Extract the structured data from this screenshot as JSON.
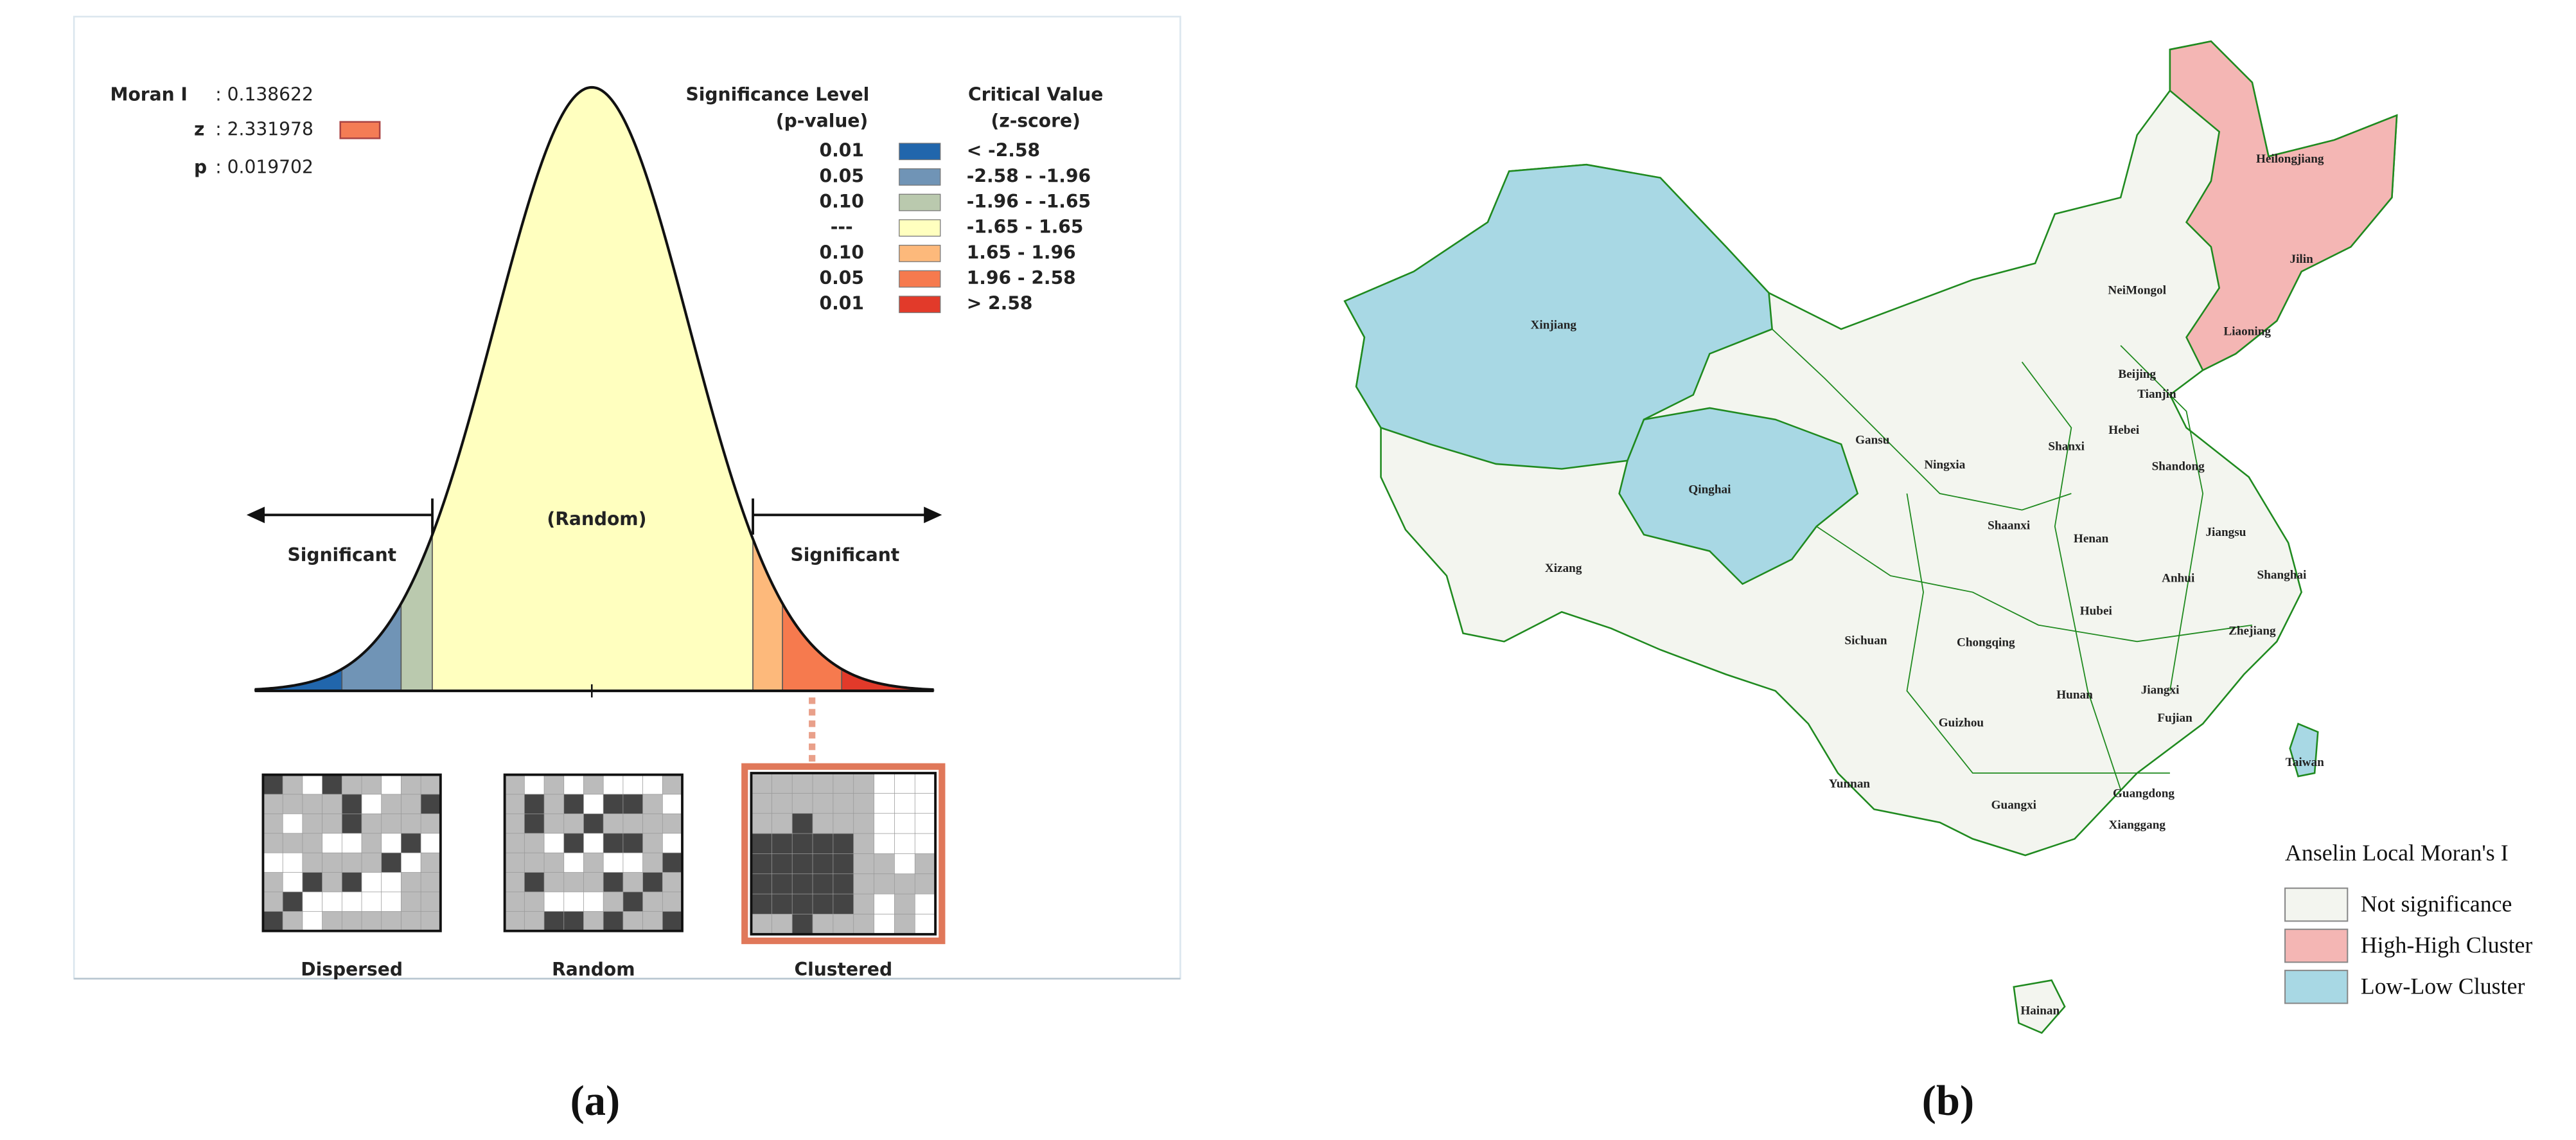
{
  "panel_a": {
    "label": "(a)",
    "stats": [
      {
        "name": "Moran I",
        "value": ": 0.138622"
      },
      {
        "name": "z",
        "value": ": 2.331978",
        "swatch_color": "#f47c55"
      },
      {
        "name": "p",
        "value": ": 0.019702"
      }
    ],
    "legend": {
      "left_header": [
        "Significance Level",
        "(p-value)"
      ],
      "right_header": [
        "Critical Value",
        "(z-score)"
      ],
      "rows": [
        {
          "p": "0.01",
          "range": "< -2.58",
          "color": "#2166ac"
        },
        {
          "p": "0.05",
          "range": "-2.58 - -1.96",
          "color": "#7094b6"
        },
        {
          "p": "0.10",
          "range": "-1.96 - -1.65",
          "color": "#bac9ae"
        },
        {
          "p": "---",
          "range": "-1.65 - 1.65",
          "color": "#ffffbf"
        },
        {
          "p": "0.10",
          "range": "1.65 - 1.96",
          "color": "#fdb97b"
        },
        {
          "p": "0.05",
          "range": "1.96 - 2.58",
          "color": "#f67a4e"
        },
        {
          "p": "0.01",
          "range": "> 2.58",
          "color": "#e23a2a"
        }
      ]
    },
    "curve": {
      "random_label": "(Random)",
      "significant_label": "Significant"
    },
    "thumbnails": [
      {
        "label": "Dispersed"
      },
      {
        "label": "Random"
      },
      {
        "label": "Clustered",
        "highlight_color": "#e0785a"
      }
    ]
  },
  "panel_b": {
    "label": "(b)",
    "outline_color": "#1f8a1f",
    "legend": {
      "title": "Anselin Local Moran's I",
      "items": [
        {
          "label": "Not significance",
          "color": "#f3f5ef",
          "provinces": [
            "NeiMongol",
            "Gansu",
            "Beijing",
            "Tianjin",
            "Hebei",
            "Shanxi",
            "Shandong",
            "Ningxia",
            "Shaanxi",
            "Henan",
            "Jiangsu",
            "Xizang",
            "Anhui",
            "Shanghai",
            "Hubei",
            "Sichuan",
            "Chongqing",
            "Zhejiang",
            "Hunan",
            "Jiangxi",
            "Guizhou",
            "Fujian",
            "Yunnan",
            "Guangxi",
            "Guangdong",
            "Xianggang",
            "Hainan"
          ]
        },
        {
          "label": "High-High Cluster",
          "color": "#f4b6b4",
          "provinces": [
            "Heilongjiang",
            "Jilin",
            "Liaoning"
          ]
        },
        {
          "label": "Low-Low Cluster",
          "color": "#a8d8e4",
          "provinces": [
            "Xinjiang",
            "Qinghai",
            "Taiwan"
          ]
        }
      ]
    }
  }
}
